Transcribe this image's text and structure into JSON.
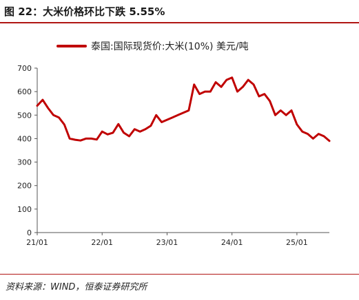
{
  "figure": {
    "title": "图  22：大米价格环比下跌 5.55%",
    "source": "资料来源：WIND，恒泰证券研究所"
  },
  "colors": {
    "accent": "#b01512",
    "series": "#c00000"
  },
  "chart_data": {
    "type": "line",
    "title": "",
    "xlabel": "",
    "ylabel": "",
    "ylim": [
      0,
      700
    ],
    "yticks": [
      0,
      100,
      200,
      300,
      400,
      500,
      600,
      700
    ],
    "xlim": [
      "2021-01",
      "2025-07"
    ],
    "xticks": [
      "21/01",
      "22/01",
      "23/01",
      "24/01",
      "25/01"
    ],
    "grid": false,
    "legend_position": "top",
    "series": [
      {
        "name": "泰国:国际现货价:大米(10%)  美元/吨",
        "x": [
          "2021-01",
          "2021-02",
          "2021-03",
          "2021-04",
          "2021-05",
          "2021-06",
          "2021-07",
          "2021-08",
          "2021-09",
          "2021-10",
          "2021-11",
          "2021-12",
          "2022-01",
          "2022-02",
          "2022-03",
          "2022-04",
          "2022-05",
          "2022-06",
          "2022-07",
          "2022-08",
          "2022-09",
          "2022-10",
          "2022-11",
          "2022-12",
          "2023-01",
          "2023-02",
          "2023-03",
          "2023-04",
          "2023-05",
          "2023-06",
          "2023-07",
          "2023-08",
          "2023-09",
          "2023-10",
          "2023-11",
          "2023-12",
          "2024-01",
          "2024-02",
          "2024-03",
          "2024-04",
          "2024-05",
          "2024-06",
          "2024-07",
          "2024-08",
          "2024-09",
          "2024-10",
          "2024-11",
          "2024-12",
          "2025-01",
          "2025-02",
          "2025-03",
          "2025-04",
          "2025-05",
          "2025-06",
          "2025-07"
        ],
        "values": [
          540,
          565,
          530,
          500,
          490,
          460,
          400,
          395,
          392,
          400,
          400,
          396,
          430,
          418,
          425,
          462,
          425,
          410,
          440,
          430,
          440,
          455,
          500,
          470,
          480,
          490,
          500,
          510,
          520,
          630,
          590,
          600,
          600,
          640,
          620,
          650,
          660,
          600,
          620,
          650,
          630,
          580,
          590,
          560,
          500,
          520,
          500,
          520,
          460,
          430,
          420,
          400,
          420,
          410,
          390
        ]
      }
    ]
  }
}
